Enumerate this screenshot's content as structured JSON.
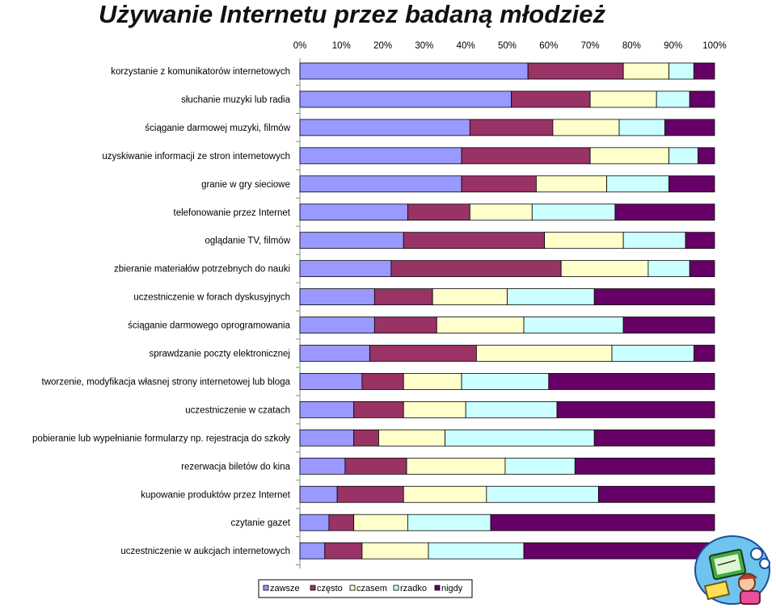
{
  "chart_data": {
    "type": "bar",
    "orientation": "horizontal",
    "stacked": "percent",
    "title": "Używanie Internetu przez badaną młodzież",
    "categories": [
      "korzystanie z komunikatorów internetowych",
      "słuchanie muzyki lub radia",
      "ściąganie darmowej muzyki, filmów",
      "uzyskiwanie informacji ze stron internetowych",
      "granie w gry sieciowe",
      "telefonowanie przez Internet",
      "oglądanie TV, filmów",
      "zbieranie materiałów potrzebnych do nauki",
      "uczestniczenie w forach dyskusyjnych",
      "ściąganie darmowego oprogramowania",
      "sprawdzanie poczty elektronicznej",
      "tworzenie, modyfikacja własnej strony internetowej lub bloga",
      "uczestniczenie w czatach",
      "pobieranie lub wypełnianie formularzy np. rejestracja do szkoły",
      "rezerwacja biletów do kina",
      "kupowanie produktów przez Internet",
      "czytanie gazet",
      "uczestniczenie w aukcjach internetowych"
    ],
    "series": [
      {
        "name": "zawsze",
        "color": "#9999ff",
        "values": [
          55,
          51,
          41,
          39,
          39,
          26,
          25,
          22,
          18,
          18,
          17,
          15,
          13,
          13,
          11,
          9,
          7,
          6
        ]
      },
      {
        "name": "często",
        "color": "#993366",
        "values": [
          23,
          19,
          20,
          31,
          18,
          15,
          34,
          41,
          14,
          15,
          26,
          10,
          12,
          6,
          15,
          16,
          6,
          9
        ]
      },
      {
        "name": "czasem",
        "color": "#ffffcc",
        "values": [
          11,
          16,
          16,
          19,
          17,
          15,
          19,
          21,
          18,
          21,
          33,
          14,
          15,
          16,
          24,
          20,
          13,
          16
        ]
      },
      {
        "name": "rzadko",
        "color": "#ccffff",
        "values": [
          6,
          8,
          11,
          7,
          15,
          20,
          15,
          10,
          21,
          24,
          20,
          21,
          22,
          36,
          17,
          27,
          20,
          23
        ]
      },
      {
        "name": "nigdy",
        "color": "#660066",
        "values": [
          5,
          6,
          12,
          4,
          11,
          24,
          7,
          6,
          29,
          22,
          5,
          40,
          38,
          29,
          34,
          28,
          54,
          46
        ]
      }
    ],
    "x_ticks": [
      "0%",
      "10%",
      "20%",
      "30%",
      "40%",
      "50%",
      "60%",
      "70%",
      "80%",
      "90%",
      "100%"
    ],
    "xlim": [
      0,
      100
    ],
    "x_axis_position": "top",
    "grid": false,
    "legend_position": "bottom"
  },
  "decoration": {
    "icon": "student-at-computer-clipart"
  }
}
